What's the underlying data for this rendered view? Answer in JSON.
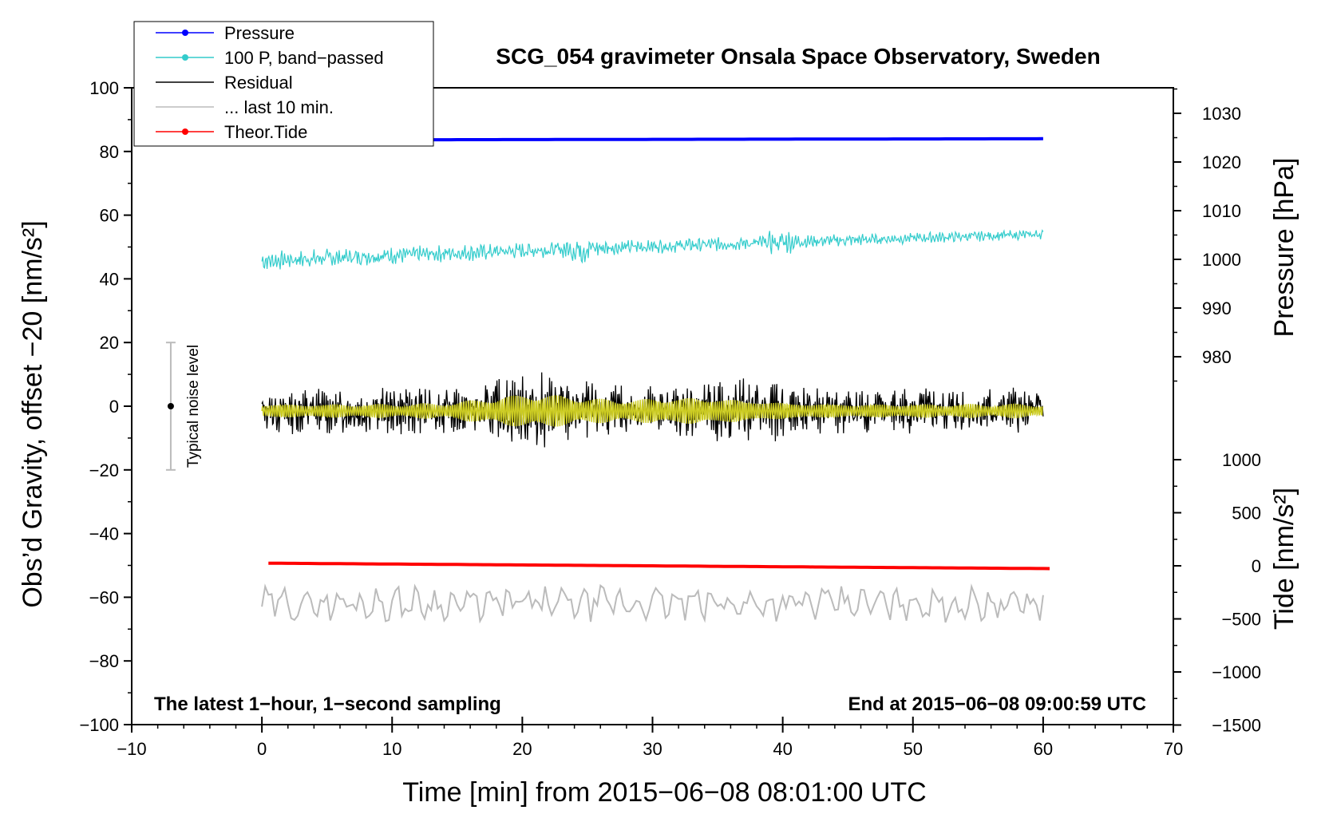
{
  "chart_data": {
    "type": "line",
    "title": "SCG_054 gravimeter Onsala Space Observatory, Sweden",
    "xlabel": "Time [min] from 2015−06−08 08:01:00 UTC",
    "ylabel_left": "Obs’d Gravity, offset −20 [nm/s²]",
    "ylabel_pressure": "Pressure [hPa]",
    "ylabel_tide": "Tide [nm/s²]",
    "xlim": [
      -10,
      70
    ],
    "ylim": [
      -100,
      100
    ],
    "x_ticks": [
      "−10",
      "0",
      "10",
      "20",
      "30",
      "40",
      "50",
      "60",
      "70"
    ],
    "y_ticks": [
      "100",
      "80",
      "60",
      "40",
      "20",
      "0",
      "−20",
      "−40",
      "−60",
      "−80",
      "−100"
    ],
    "pressure_ticks": [
      "1030",
      "1020",
      "1010",
      "1000",
      "990",
      "980"
    ],
    "pressure_tick_values": [
      1030,
      1020,
      1010,
      1000,
      990,
      980
    ],
    "tide_ticks": [
      "1000",
      "500",
      "0",
      "−500",
      "−1000",
      "−1500"
    ],
    "tide_tick_values": [
      1000,
      500,
      0,
      -500,
      -1000,
      -1500
    ],
    "annotation_left": "The latest 1−hour, 1−second sampling",
    "annotation_right": "End at 2015−06−08 09:00:59 UTC",
    "noise_bar": {
      "label": "Typical noise level",
      "x": -7,
      "center": 0,
      "half_range": 20,
      "color": "#bbbbbb"
    },
    "legend": [
      {
        "name": "Pressure",
        "color": "#0000ff",
        "marker": true
      },
      {
        "name": "100 P, band−passed",
        "color": "#33cccc",
        "marker": true
      },
      {
        "name": "Residual",
        "color": "#000000",
        "marker": false
      },
      {
        "name": "... last 10 min.",
        "color": "#bbbbbb",
        "marker": false
      },
      {
        "name": "Theor.Tide",
        "color": "#ff0000",
        "marker": true
      }
    ],
    "series": [
      {
        "name": "Pressure",
        "color": "#0000ff",
        "x_range": [
          0,
          60
        ],
        "y_start": 83.6,
        "y_end": 84.0,
        "noise": 0
      },
      {
        "name": "100 P, band−passed",
        "color": "#33cccc",
        "x_range": [
          0,
          60
        ],
        "y_start": 45.5,
        "y_end": 54.0,
        "amplitude": 2.5
      },
      {
        "name": "Residual",
        "color": "#000000",
        "x_range": [
          0,
          60
        ],
        "y_center": -1.5,
        "amplitude": 5.5
      },
      {
        "name": "Residual filtered",
        "color": "#cccc22",
        "x_range": [
          0,
          60
        ],
        "y_center": -1.5,
        "amplitude": 3.0
      },
      {
        "name": "Theor.Tide",
        "color": "#ff0000",
        "x_range": [
          0.5,
          60.5
        ],
        "y_start": -49.3,
        "y_end": -51.0,
        "noise": 0
      },
      {
        "name": "... last 10 min.",
        "color": "#bbbbbb",
        "x_range": [
          0,
          60
        ],
        "y_center": -62,
        "amplitude": 4.0
      }
    ]
  }
}
